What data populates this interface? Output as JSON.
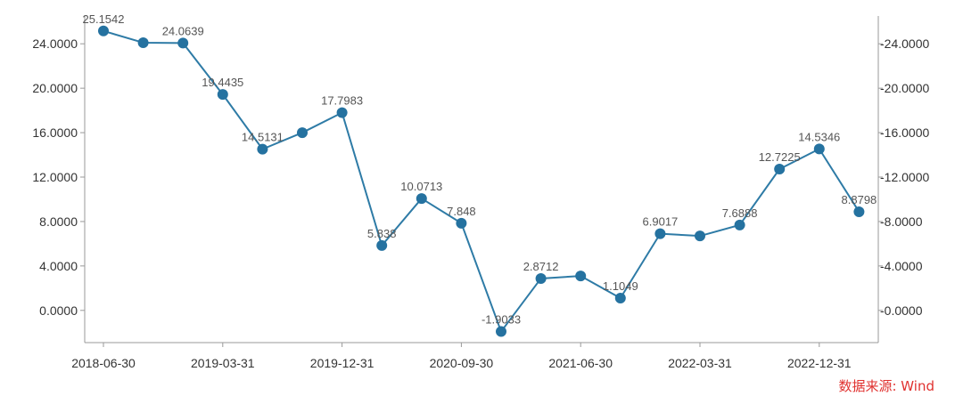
{
  "chart_data": {
    "type": "line",
    "x": [
      "2018-06-30",
      "2018-09-30",
      "2018-12-31",
      "2019-03-31",
      "2019-06-30",
      "2019-09-30",
      "2019-12-31",
      "2020-03-31",
      "2020-06-30",
      "2020-09-30",
      "2020-12-31",
      "2021-03-31",
      "2021-06-30",
      "2021-09-30",
      "2021-12-31",
      "2022-03-31",
      "2022-06-30",
      "2022-09-30",
      "2022-12-31",
      "2023-03-31"
    ],
    "values": [
      25.1542,
      24.1,
      24.0639,
      19.4435,
      14.5131,
      16.0,
      17.7983,
      5.838,
      10.0713,
      7.848,
      -1.9033,
      2.8712,
      3.1,
      1.1049,
      6.9017,
      6.7,
      7.6888,
      12.7225,
      14.5346,
      8.8798
    ],
    "data_labels": [
      "25.1542",
      "",
      "24.0639",
      "19.4435",
      "14.5131",
      "",
      "17.7983",
      "5.838",
      "10.0713",
      "7.848",
      "-1.9033",
      "2.8712",
      "",
      "1.1049",
      "6.9017",
      "",
      "7.6888",
      "12.7225",
      "14.5346",
      "8.8798"
    ],
    "x_tick_labels": [
      "2018-06-30",
      "2019-03-31",
      "2019-12-31",
      "2020-09-30",
      "2021-06-30",
      "2022-03-31",
      "2022-12-31"
    ],
    "y_tick_values": [
      0,
      4,
      8,
      12,
      16,
      20,
      24
    ],
    "y_tick_labels": [
      "0.0000",
      "4.0000",
      "8.0000",
      "12.0000",
      "16.0000",
      "20.0000",
      "24.0000"
    ],
    "ylim": [
      -2.9,
      26.5
    ],
    "title": "",
    "xlabel": "",
    "ylabel": "",
    "grid": false,
    "legend": "none",
    "colors": {
      "line": "#2e7ba6",
      "marker": "#2572a0",
      "axis": "#999999",
      "source_text": "#e0312f"
    }
  },
  "source_note": "数据来源: Wind"
}
